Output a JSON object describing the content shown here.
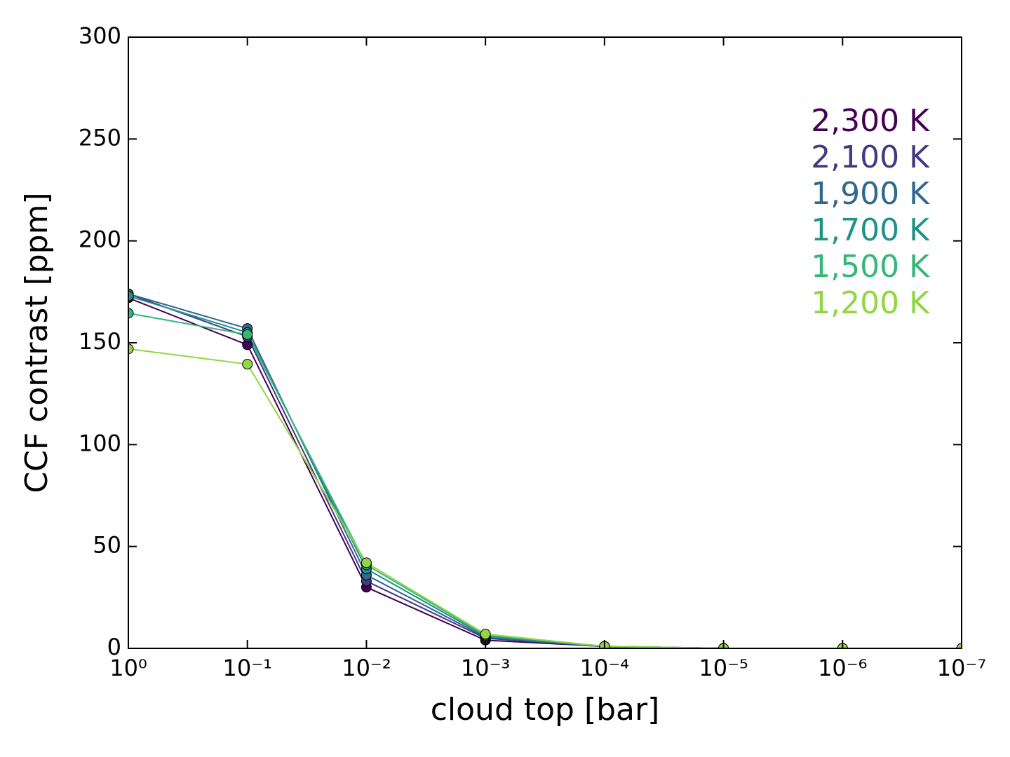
{
  "chart_data": {
    "type": "line",
    "x_label": "cloud top [bar]",
    "y_label": "CCF contrast [ppm]",
    "x": [
      1,
      0.1,
      0.01,
      0.001,
      0.0001,
      1e-05,
      1e-06,
      1e-07
    ],
    "x_scale": "log",
    "xlim": [
      1,
      1e-07
    ],
    "xticks": [
      {
        "value": 1,
        "label": "10⁰"
      },
      {
        "value": 0.1,
        "label": "10⁻¹"
      },
      {
        "value": 0.01,
        "label": "10⁻²"
      },
      {
        "value": 0.001,
        "label": "10⁻³"
      },
      {
        "value": 0.0001,
        "label": "10⁻⁴"
      },
      {
        "value": 1e-05,
        "label": "10⁻⁵"
      },
      {
        "value": 1e-06,
        "label": "10⁻⁶"
      },
      {
        "value": 1e-07,
        "label": "10⁻⁷"
      }
    ],
    "ylim": [
      0,
      300
    ],
    "yticks": [
      0,
      50,
      100,
      150,
      200,
      250,
      300
    ],
    "legend_position": "upper right",
    "series": [
      {
        "name": "2,300 K",
        "color": "#440154",
        "values": [
          172,
          149,
          30,
          4,
          1,
          0,
          0,
          0
        ]
      },
      {
        "name": "2,100 K",
        "color": "#443983",
        "values": [
          174,
          153,
          33,
          5,
          0.8,
          0,
          0,
          0
        ]
      },
      {
        "name": "1,900 K",
        "color": "#31688e",
        "values": [
          174,
          157,
          36,
          5.5,
          0.8,
          0,
          0,
          0
        ]
      },
      {
        "name": "1,700 K",
        "color": "#21918c",
        "values": [
          173,
          155,
          39,
          6,
          1,
          0,
          0,
          0
        ]
      },
      {
        "name": "1,500 K",
        "color": "#35b779",
        "values": [
          164.5,
          154,
          41,
          6.5,
          1,
          0,
          0,
          0
        ]
      },
      {
        "name": "1,200 K",
        "color": "#90d743",
        "values": [
          147,
          139.5,
          42,
          7,
          1,
          0,
          0,
          0
        ]
      }
    ]
  }
}
